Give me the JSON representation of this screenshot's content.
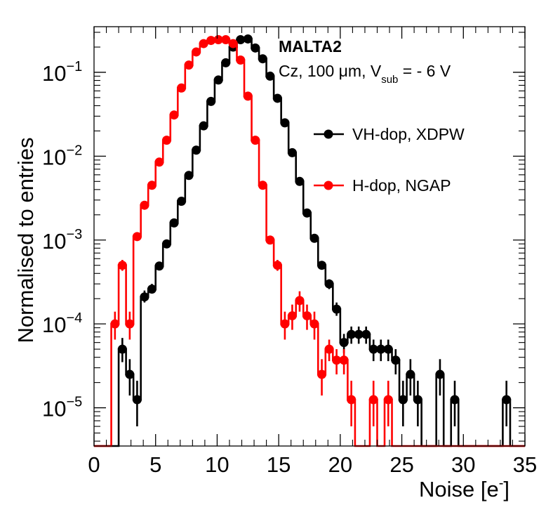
{
  "chart_data": {
    "type": "line",
    "xlabel": "Noise [e",
    "xlabel_sup": "-",
    "xlabel_close": "]",
    "ylabel": "Normalised to entries",
    "xlim": [
      0,
      35
    ],
    "ylim": [
      3.5e-06,
      0.35
    ],
    "yscale": "log",
    "x_ticks": [
      "0",
      "5",
      "10",
      "15",
      "20",
      "25",
      "30",
      "35"
    ],
    "y_ticks": [
      {
        "base": "10",
        "exp": "−5",
        "value": 1e-05
      },
      {
        "base": "10",
        "exp": "−4",
        "value": 0.0001
      },
      {
        "base": "10",
        "exp": "−3",
        "value": 0.001
      },
      {
        "base": "10",
        "exp": "−2",
        "value": 0.01
      },
      {
        "base": "10",
        "exp": "−1",
        "value": 0.1
      }
    ],
    "bin_width": 0.6,
    "annotation": {
      "title": "MALTA2",
      "line_prefix": "Cz, 100 μm, V",
      "line_sub": "sub",
      "line_suffix": " = - 6 V"
    },
    "series": [
      {
        "name": "VH-dop, XDPW",
        "color": "#000000",
        "points": [
          {
            "x": 2.3,
            "y": 5e-05,
            "err": [
              3.5e-05,
              6.8e-05
            ]
          },
          {
            "x": 2.9,
            "y": 2.5e-05,
            "err": [
              1.4e-05,
              3.8e-05
            ]
          },
          {
            "x": 3.5,
            "y": 1.25e-05,
            "err": [
              6e-06,
              2.1e-05
            ]
          },
          {
            "x": 4.1,
            "y": 0.00021,
            "err": [
              0.00018,
              0.00025
            ]
          },
          {
            "x": 4.7,
            "y": 0.00026,
            "err": [
              0.00023,
              0.0003
            ]
          },
          {
            "x": 5.3,
            "y": 0.00049
          },
          {
            "x": 5.9,
            "y": 0.0009
          },
          {
            "x": 6.5,
            "y": 0.0016
          },
          {
            "x": 7.1,
            "y": 0.0029
          },
          {
            "x": 7.7,
            "y": 0.0059
          },
          {
            "x": 8.3,
            "y": 0.0118
          },
          {
            "x": 8.9,
            "y": 0.023
          },
          {
            "x": 9.5,
            "y": 0.045
          },
          {
            "x": 10.1,
            "y": 0.081
          },
          {
            "x": 10.7,
            "y": 0.13
          },
          {
            "x": 11.3,
            "y": 0.2
          },
          {
            "x": 11.9,
            "y": 0.245
          },
          {
            "x": 12.5,
            "y": 0.25
          },
          {
            "x": 13.1,
            "y": 0.195
          },
          {
            "x": 13.7,
            "y": 0.145
          },
          {
            "x": 14.3,
            "y": 0.09
          },
          {
            "x": 14.9,
            "y": 0.049
          },
          {
            "x": 15.5,
            "y": 0.025
          },
          {
            "x": 16.1,
            "y": 0.011
          },
          {
            "x": 16.7,
            "y": 0.005
          },
          {
            "x": 17.3,
            "y": 0.0021
          },
          {
            "x": 17.9,
            "y": 0.00105
          },
          {
            "x": 18.5,
            "y": 0.0005,
            "err": [
              0.00045,
              0.00056
            ]
          },
          {
            "x": 19.1,
            "y": 0.0003,
            "err": [
              0.00026,
              0.00034
            ]
          },
          {
            "x": 19.7,
            "y": 0.00015,
            "err": [
              0.000125,
              0.00018
            ]
          },
          {
            "x": 20.3,
            "y": 6e-05,
            "err": [
              4.5e-05,
              7.6e-05
            ]
          },
          {
            "x": 20.9,
            "y": 7.5e-05,
            "err": [
              5.8e-05,
              9.3e-05
            ]
          },
          {
            "x": 21.5,
            "y": 7.5e-05,
            "err": [
              5.8e-05,
              9.3e-05
            ]
          },
          {
            "x": 22.1,
            "y": 7.5e-05,
            "err": [
              5.8e-05,
              9.3e-05
            ]
          },
          {
            "x": 22.7,
            "y": 5e-05,
            "err": [
              3.6e-05,
              6.5e-05
            ]
          },
          {
            "x": 23.3,
            "y": 5e-05,
            "err": [
              3.6e-05,
              6.5e-05
            ]
          },
          {
            "x": 23.9,
            "y": 5e-05,
            "err": [
              3.6e-05,
              6.5e-05
            ]
          },
          {
            "x": 24.5,
            "y": 3.7e-05,
            "err": [
              2.5e-05,
              5e-05
            ]
          },
          {
            "x": 25.1,
            "y": 1.25e-05,
            "err": [
              6e-06,
              2.1e-05
            ]
          },
          {
            "x": 25.7,
            "y": 2.5e-05,
            "err": [
              1.4e-05,
              3.8e-05
            ]
          },
          {
            "x": 26.3,
            "y": 1.25e-05,
            "err": [
              6e-06,
              2.1e-05
            ]
          },
          {
            "x": 28.1,
            "y": 2.5e-05,
            "err": [
              1.4e-05,
              3.8e-05
            ]
          },
          {
            "x": 29.3,
            "y": 1.25e-05,
            "err": [
              6e-06,
              2.1e-05
            ]
          },
          {
            "x": 33.5,
            "y": 1.25e-05,
            "err": [
              6e-06,
              2.1e-05
            ]
          }
        ]
      },
      {
        "name": "H-dop, NGAP",
        "color": "#ff0000",
        "points": [
          {
            "x": 1.7,
            "y": 0.0001,
            "err": [
              6.5e-05,
              0.00014
            ]
          },
          {
            "x": 2.3,
            "y": 0.0005,
            "err": [
              0.00043,
              0.00058
            ]
          },
          {
            "x": 2.9,
            "y": 0.0001,
            "err": [
              6.5e-05,
              0.00014
            ]
          },
          {
            "x": 3.5,
            "y": 0.0011
          },
          {
            "x": 4.1,
            "y": 0.0026
          },
          {
            "x": 4.7,
            "y": 0.0045
          },
          {
            "x": 5.3,
            "y": 0.0085
          },
          {
            "x": 5.9,
            "y": 0.0155
          },
          {
            "x": 6.5,
            "y": 0.031
          },
          {
            "x": 7.1,
            "y": 0.065
          },
          {
            "x": 7.7,
            "y": 0.122
          },
          {
            "x": 8.3,
            "y": 0.175
          },
          {
            "x": 8.9,
            "y": 0.22
          },
          {
            "x": 9.5,
            "y": 0.24
          },
          {
            "x": 10.1,
            "y": 0.245
          },
          {
            "x": 10.7,
            "y": 0.245
          },
          {
            "x": 11.3,
            "y": 0.22
          },
          {
            "x": 11.9,
            "y": 0.14
          },
          {
            "x": 12.5,
            "y": 0.052
          },
          {
            "x": 13.1,
            "y": 0.0155
          },
          {
            "x": 13.7,
            "y": 0.0045
          },
          {
            "x": 14.3,
            "y": 0.001
          },
          {
            "x": 14.9,
            "y": 0.0005,
            "err": [
              0.00043,
              0.00058
            ]
          },
          {
            "x": 15.5,
            "y": 0.0001,
            "err": [
              6.5e-05,
              0.00014
            ]
          },
          {
            "x": 16.1,
            "y": 0.000125,
            "err": [
              8.5e-05,
              0.00017
            ]
          },
          {
            "x": 16.7,
            "y": 0.00019,
            "err": [
              0.00014,
              0.000245
            ]
          },
          {
            "x": 17.3,
            "y": 0.000125,
            "err": [
              8.5e-05,
              0.00017
            ]
          },
          {
            "x": 17.9,
            "y": 0.0001,
            "err": [
              6.5e-05,
              0.00014
            ]
          },
          {
            "x": 18.5,
            "y": 2.5e-05,
            "err": [
              1.4e-05,
              3.8e-05
            ]
          },
          {
            "x": 19.1,
            "y": 5e-05,
            "err": [
              3.6e-05,
              6.5e-05
            ]
          },
          {
            "x": 19.7,
            "y": 3.7e-05,
            "err": [
              2.5e-05,
              5e-05
            ]
          },
          {
            "x": 20.3,
            "y": 3.7e-05,
            "err": [
              2.5e-05,
              5e-05
            ]
          },
          {
            "x": 20.9,
            "y": 1.25e-05,
            "err": [
              6e-06,
              2.1e-05
            ]
          },
          {
            "x": 22.7,
            "y": 1.25e-05,
            "err": [
              6e-06,
              2.1e-05
            ]
          },
          {
            "x": 23.9,
            "y": 1.25e-05,
            "err": [
              6e-06,
              2.1e-05
            ]
          }
        ]
      }
    ]
  }
}
